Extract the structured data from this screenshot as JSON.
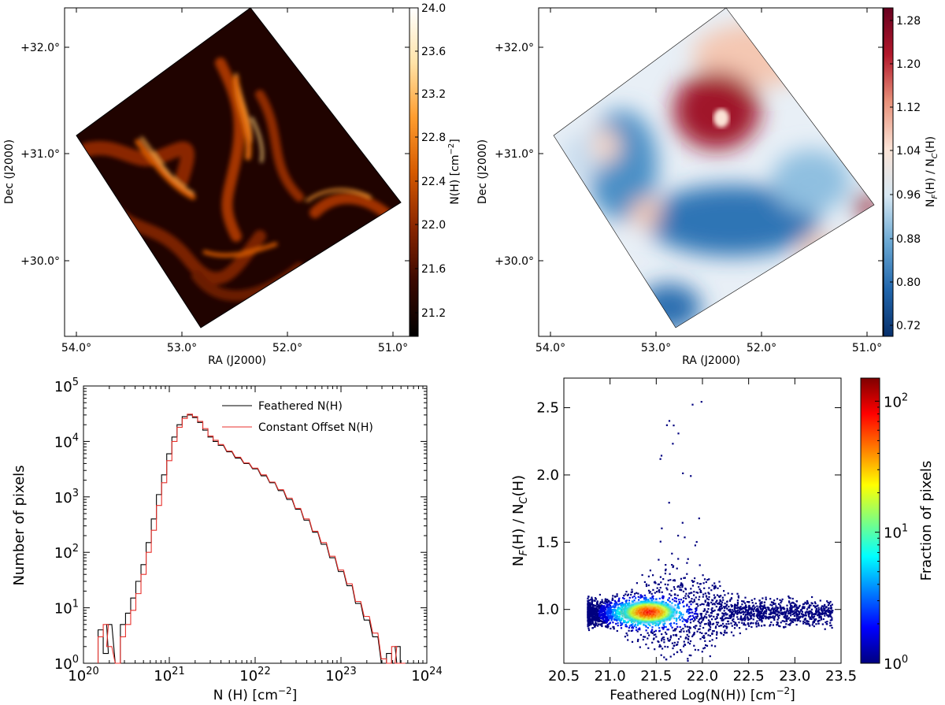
{
  "chart_data": [
    {
      "id": "map1",
      "type": "heatmap",
      "title": "",
      "xlabel": "RA (J2000)",
      "ylabel": "Dec (J2000)",
      "xticks": [
        "54.0°",
        "53.0°",
        "52.0°",
        "51.0°"
      ],
      "yticks": [
        "+32.0°",
        "+31.0°",
        "+30.0°"
      ],
      "colorbar": {
        "label": "N(H) [cm⁻²]",
        "ticks": [
          "24.0",
          "23.6",
          "23.2",
          "22.8",
          "22.4",
          "22.0",
          "21.6",
          "21.2"
        ],
        "range": [
          21.0,
          24.0
        ],
        "colors": [
          "#000000",
          "#3a0800",
          "#8a2600",
          "#d65a00",
          "#ff9d2e",
          "#ffe3a8",
          "#ffffff"
        ]
      }
    },
    {
      "id": "map2",
      "type": "heatmap",
      "title": "",
      "xlabel": "RA (J2000)",
      "ylabel": "Dec (J2000)",
      "xticks": [
        "54.0°",
        "53.0°",
        "52.0°",
        "51.0°"
      ],
      "yticks": [
        "+32.0°",
        "+31.0°",
        "+30.0°"
      ],
      "colorbar": {
        "label": "N_F(H) / N_C(H)",
        "ticks": [
          "1.28",
          "1.20",
          "1.12",
          "1.04",
          "0.96",
          "0.88",
          "0.80",
          "0.72"
        ],
        "range": [
          0.7,
          1.3
        ],
        "colors": [
          "#08306b",
          "#2166ac",
          "#6aa8d3",
          "#d7e8f3",
          "#fbe3d6",
          "#e8917a",
          "#b2182b",
          "#67001f"
        ]
      }
    },
    {
      "id": "hist",
      "type": "line",
      "title": "",
      "xlabel": "N (H) [cm⁻²]",
      "ylabel": "Number of pixels",
      "xscale": "log",
      "yscale": "log",
      "xlim": [
        1e+20,
        1e+24
      ],
      "ylim": [
        1,
        100000
      ],
      "xticks": [
        "10^20",
        "10^21",
        "10^22",
        "10^23",
        "10^24"
      ],
      "yticks": [
        "10^0",
        "10^1",
        "10^2",
        "10^3",
        "10^4",
        "10^5"
      ],
      "legend": "top-right",
      "series": [
        {
          "name": "Feathered N(H)",
          "color": "#000000",
          "x": [
            20.2,
            20.26,
            20.3,
            20.4,
            20.46,
            20.52,
            20.58,
            20.64,
            20.7,
            20.76,
            20.82,
            20.88,
            20.94,
            21.0,
            21.06,
            21.12,
            21.18,
            21.24,
            21.3,
            21.36,
            21.42,
            21.48,
            21.54,
            21.6,
            21.7,
            21.8,
            21.9,
            22.0,
            22.1,
            22.2,
            22.3,
            22.4,
            22.5,
            22.6,
            22.7,
            22.8,
            22.9,
            23.0,
            23.1,
            23.2,
            23.3,
            23.4,
            23.5,
            23.56,
            23.62,
            23.66,
            23.72
          ],
          "y": [
            4,
            1.5,
            5,
            1,
            5,
            8,
            15,
            30,
            60,
            150,
            400,
            1100,
            2500,
            6000,
            12000,
            20000,
            28000,
            30000,
            27000,
            22000,
            16000,
            12000,
            10000,
            8500,
            6500,
            5000,
            4000,
            3200,
            2400,
            1800,
            1300,
            900,
            600,
            380,
            230,
            140,
            80,
            45,
            25,
            12,
            6,
            3,
            1,
            1.5,
            1,
            2,
            1
          ]
        },
        {
          "name": "Constant Offset N(H)",
          "color": "#e8312c",
          "x": [
            20.2,
            20.26,
            20.3,
            20.4,
            20.46,
            20.52,
            20.58,
            20.64,
            20.7,
            20.76,
            20.82,
            20.88,
            20.94,
            21.0,
            21.06,
            21.12,
            21.18,
            21.24,
            21.3,
            21.36,
            21.42,
            21.48,
            21.54,
            21.6,
            21.7,
            21.8,
            21.9,
            22.0,
            22.1,
            22.2,
            22.3,
            22.4,
            22.5,
            22.6,
            22.7,
            22.8,
            22.9,
            23.0,
            23.1,
            23.2,
            23.3,
            23.4,
            23.5,
            23.56,
            23.62,
            23.66,
            23.72
          ],
          "y": [
            3,
            5,
            2,
            1,
            3,
            5,
            9,
            18,
            40,
            100,
            250,
            700,
            1800,
            4500,
            10000,
            18000,
            26000,
            31000,
            28000,
            23000,
            17000,
            12500,
            10500,
            8800,
            6700,
            5200,
            4100,
            3300,
            2500,
            1850,
            1350,
            950,
            620,
            400,
            240,
            150,
            85,
            48,
            27,
            13,
            7,
            3.5,
            1.2,
            1,
            2,
            1,
            1
          ]
        }
      ]
    },
    {
      "id": "density",
      "type": "scatter",
      "title": "",
      "xlabel": "Feathered Log(N(H)) [cm⁻²]",
      "ylabel": "N_F(H) / N_C(H)",
      "xlim": [
        20.5,
        23.5
      ],
      "ylim": [
        0.6,
        2.72
      ],
      "xticks": [
        "20.5",
        "21.0",
        "21.5",
        "22.0",
        "22.5",
        "23.0",
        "23.5"
      ],
      "yticks": [
        "1.0",
        "1.5",
        "2.0",
        "2.5"
      ],
      "colorbar": {
        "label": "Fraction of pixels",
        "scale": "log",
        "ticks": [
          "10^0",
          "10^1",
          "10^2"
        ],
        "range": [
          1,
          150
        ],
        "colors": [
          "#00007f",
          "#0000ff",
          "#007fff",
          "#00ffff",
          "#7fff7f",
          "#ffff00",
          "#ff7f00",
          "#ff0000",
          "#7f0000"
        ]
      }
    }
  ]
}
